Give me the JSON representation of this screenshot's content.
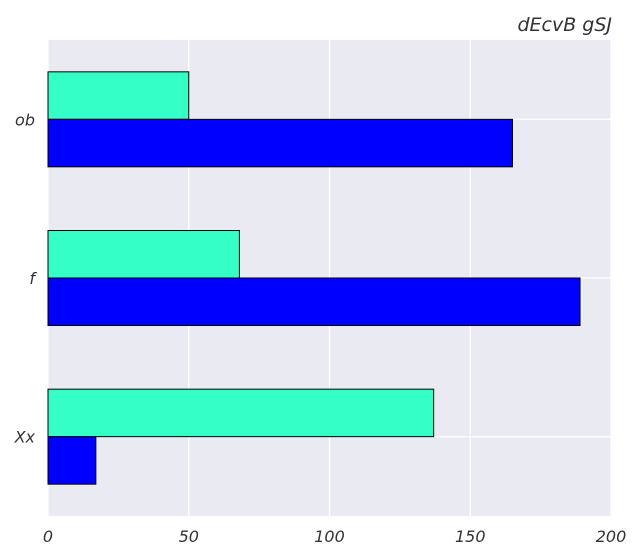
{
  "chart_data": {
    "type": "bar",
    "orientation": "horizontal",
    "title": "dEcvB gSJ",
    "xlabel": "",
    "ylabel": "",
    "xlim": [
      0,
      200
    ],
    "xticks": [
      0,
      50,
      100,
      150,
      200
    ],
    "grid": true,
    "categories": [
      "ob",
      "f",
      "Xx"
    ],
    "series": [
      {
        "name": "series-1",
        "color": "#33ffc6",
        "values": [
          50,
          68,
          137
        ]
      },
      {
        "name": "series-2",
        "color": "#0000ff",
        "values": [
          165,
          189,
          17
        ]
      }
    ],
    "background": "#eaeaf2"
  }
}
